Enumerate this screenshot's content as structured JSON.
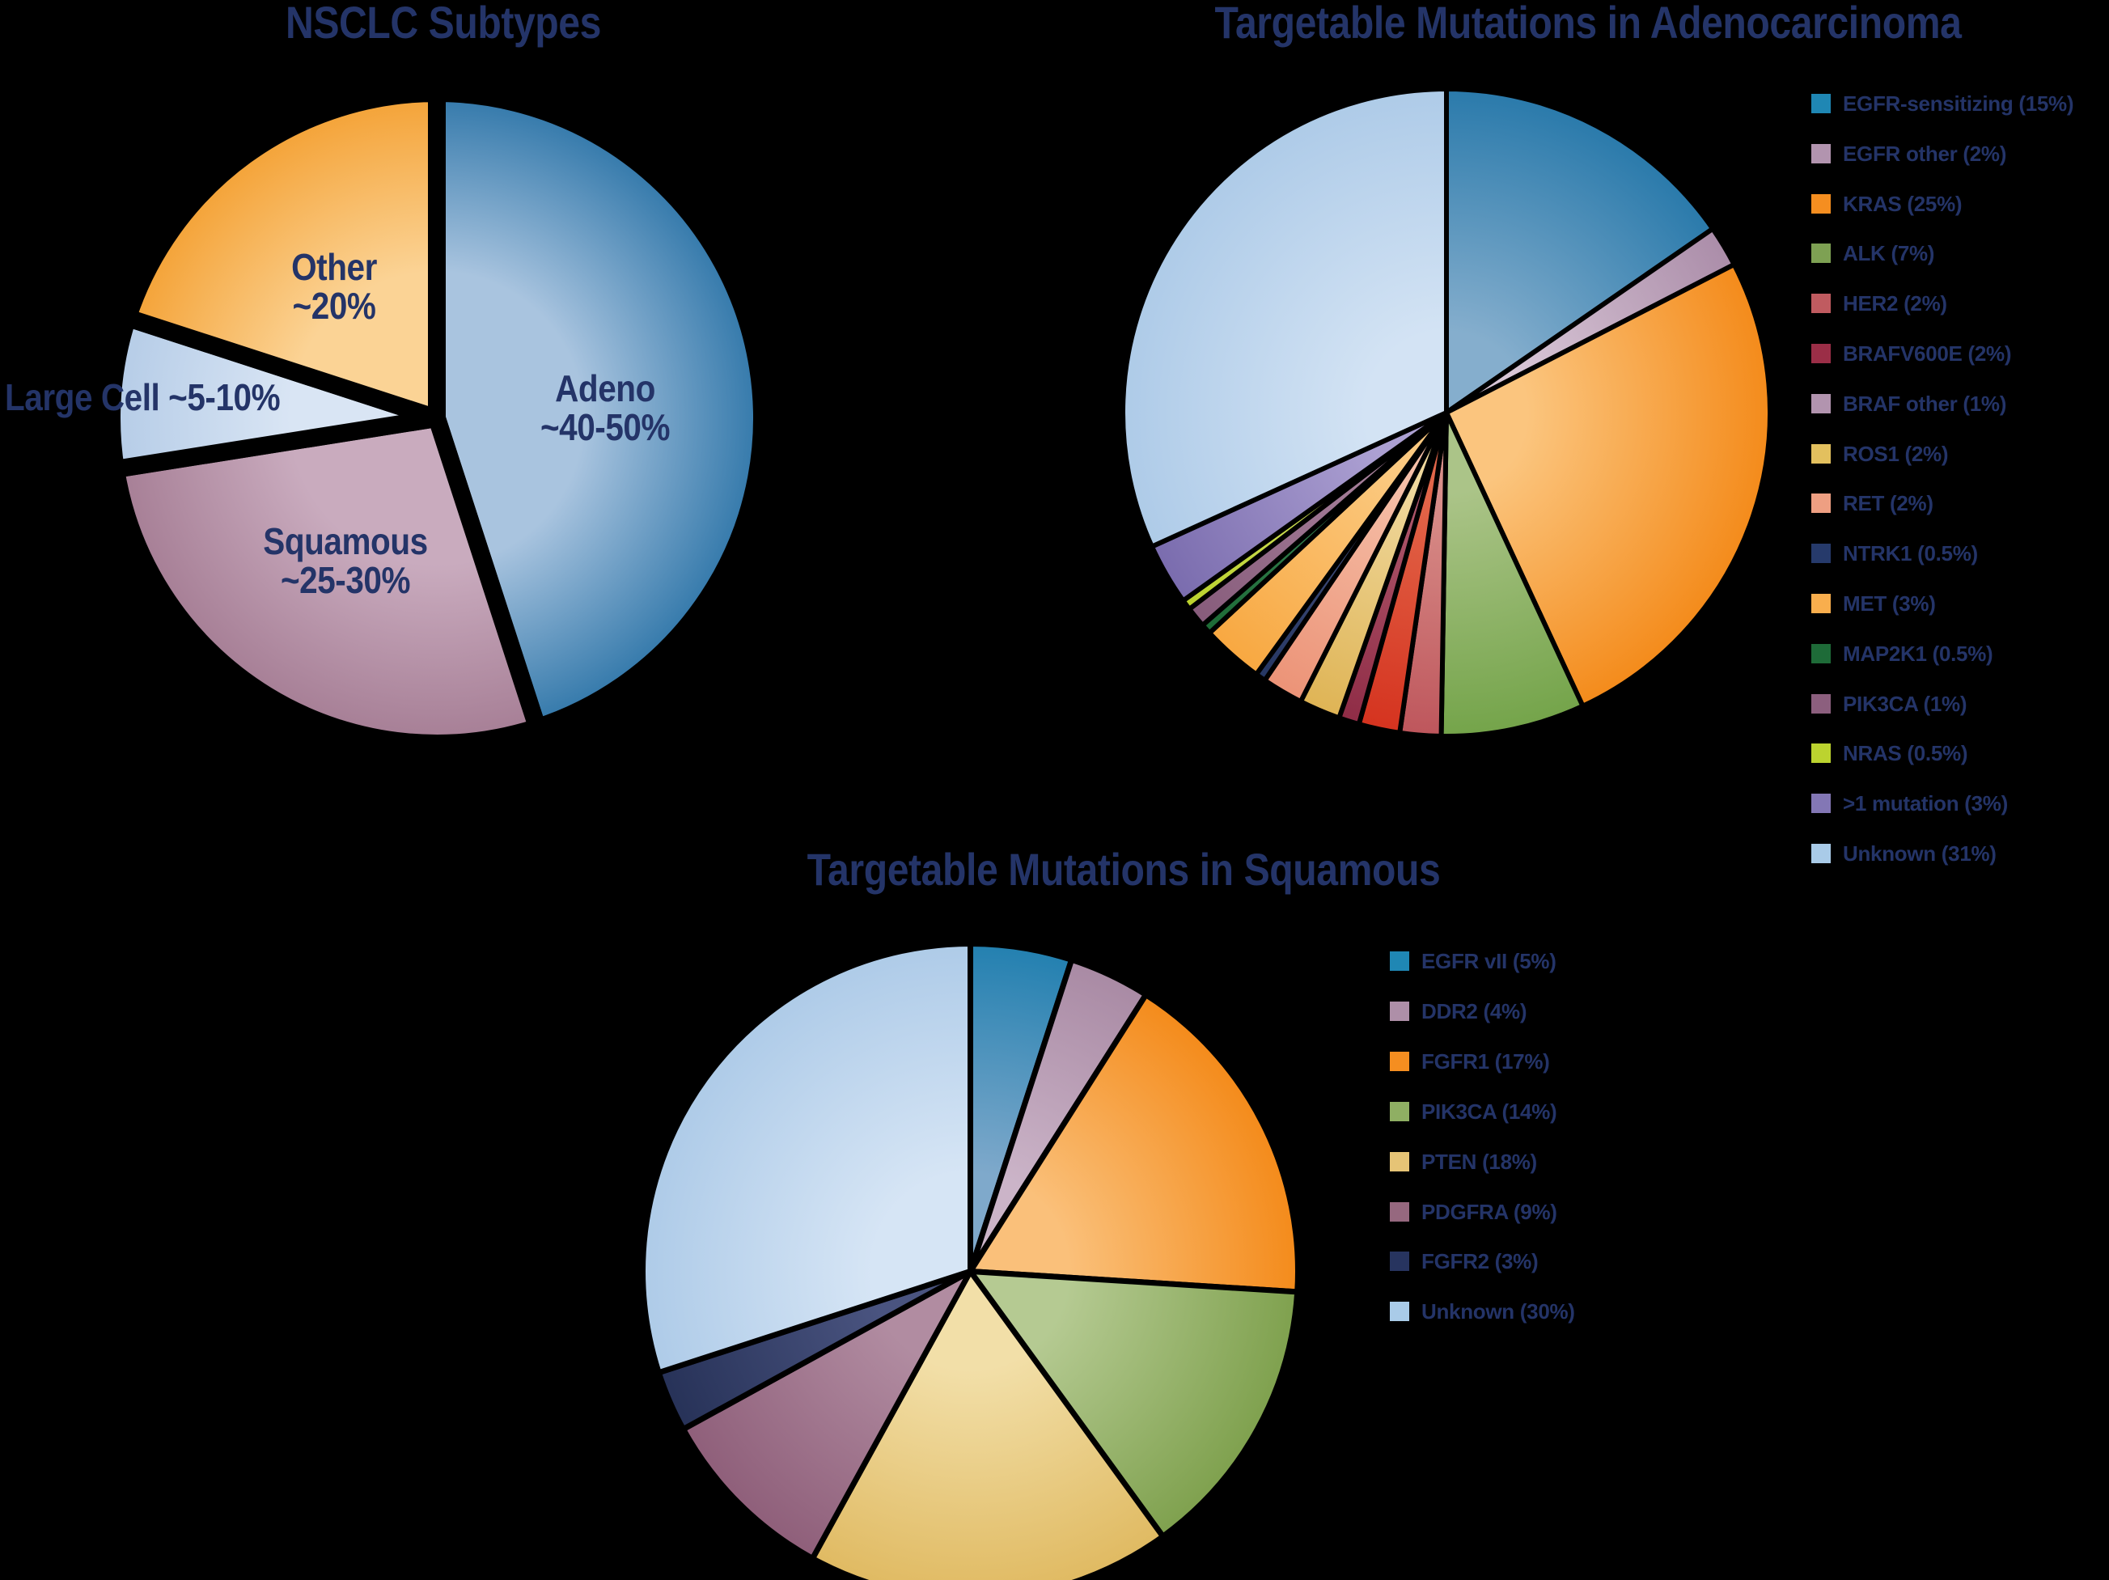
{
  "page": {
    "background_color": "#000000",
    "text_color": "#243468"
  },
  "chart_data": [
    {
      "type": "pie",
      "title": "NSCLC Subtypes",
      "legend_position": "none",
      "slices": [
        {
          "name": "Adeno",
          "display_label": "Adeno ~40-50%",
          "label_lines": [
            "Adeno",
            "~40-50%"
          ],
          "value": 45,
          "value_text": "~40-50%",
          "color_center": "#A9C4DF",
          "color_edge": "#3278AA"
        },
        {
          "name": "Squamous",
          "display_label": "Squamous ~25-30%",
          "label_lines": [
            "Squamous",
            "~25-30%"
          ],
          "value": 27.5,
          "value_text": "~25-30%",
          "color_center": "#C9ABBE",
          "color_edge": "#A67E95"
        },
        {
          "name": "Large Cell",
          "display_label": "Large Cell ~5-10%",
          "label_lines": [
            "Large Cell ~5-10%"
          ],
          "value": 7.5,
          "value_text": "~5-10%",
          "color_center": "#D9E5F4",
          "color_edge": "#B5CCE7"
        },
        {
          "name": "Other",
          "display_label": "Other ~20%",
          "label_lines": [
            "Other",
            "~20%"
          ],
          "value": 20,
          "value_text": "~20%",
          "color_center": "#FBD395",
          "color_edge": "#F4A236"
        }
      ]
    },
    {
      "type": "pie",
      "title": "Targetable Mutations in Adenocarcinoma",
      "legend_position": "right",
      "slices": [
        {
          "name": "EGFR-sensitizing",
          "legend_label": "EGFR-sensitizing (15%)",
          "value": 15,
          "legend_color": "#1F87B4",
          "color_center": "#85AECD",
          "color_edge": "#2A7AAB"
        },
        {
          "name": "EGFR other",
          "legend_label": "EGFR other (2%)",
          "value": 2,
          "legend_color": "#B294AF",
          "color_center": "#D8C6D6",
          "color_edge": "#AB8DA9"
        },
        {
          "name": "KRAS",
          "legend_label": "KRAS (25%)",
          "value": 25,
          "legend_color": "#F58E20",
          "color_center": "#FBC57E",
          "color_edge": "#F48B1B"
        },
        {
          "name": "ALK",
          "legend_label": "ALK (7%)",
          "value": 7,
          "legend_color": "#7EA153",
          "color_center": "#ABC488",
          "color_edge": "#74A44A"
        },
        {
          "name": "HER2",
          "legend_label": "HER2 (2%)",
          "value": 2,
          "legend_color": "#C05B60",
          "color_center": "#D98F8A",
          "color_edge": "#BE565C"
        },
        {
          "name": "BRAFV600E",
          "legend_label": "BRAFV600E (2%)",
          "value": 2,
          "legend_color": "#9B2E47",
          "color_center": "#E2664A",
          "color_edge": "#D5331F"
        },
        {
          "name": "BRAF other",
          "legend_label": "BRAF other (1%)",
          "value": 1,
          "legend_color": "#B294AF",
          "color_center": "#B05A6E",
          "color_edge": "#8F2C46"
        },
        {
          "name": "ROS1",
          "legend_label": "ROS1 (2%)",
          "value": 2,
          "legend_color": "#E3C05E",
          "color_center": "#EFD89D",
          "color_edge": "#DFB455"
        },
        {
          "name": "RET",
          "legend_label": "RET (2%)",
          "value": 2,
          "legend_color": "#EE9F82",
          "color_center": "#F5BFA8",
          "color_edge": "#EC9377"
        },
        {
          "name": "NTRK1",
          "legend_label": "NTRK1 (0.5%)",
          "value": 0.5,
          "legend_color": "#263A6B",
          "color_center": "#4A5580",
          "color_edge": "#263763"
        },
        {
          "name": "MET",
          "legend_label": "MET (3%)",
          "value": 3,
          "legend_color": "#F9AE4D",
          "color_center": "#FBC980",
          "color_edge": "#F8A841"
        },
        {
          "name": "MAP2K1",
          "legend_label": "MAP2K1 (0.5%)",
          "value": 0.5,
          "legend_color": "#1E6B38",
          "color_center": "#3F845A",
          "color_edge": "#1D6B36"
        },
        {
          "name": "PIK3CA",
          "legend_label": "PIK3CA (1%)",
          "value": 1,
          "legend_color": "#8C5F7E",
          "color_center": "#A8819C",
          "color_edge": "#875C7B"
        },
        {
          "name": "NRAS",
          "legend_label": "NRAS (0.5%)",
          "value": 0.5,
          "legend_color": "#BCD32F",
          "color_center": "#D2E06A",
          "color_edge": "#BBD22D"
        },
        {
          "name": ">1 mutation",
          "legend_label": ">1 mutation (3%)",
          "value": 3,
          "legend_color": "#8377B5",
          "color_center": "#ACA0D2",
          "color_edge": "#7A6CAE"
        },
        {
          "name": "Unknown",
          "legend_label": "Unknown (31%)",
          "value": 31,
          "legend_color": "#A9CBE8",
          "color_center": "#D3E3F4",
          "color_edge": "#AECBE8"
        }
      ]
    },
    {
      "type": "pie",
      "title": "Targetable Mutations in Squamous",
      "legend_position": "right",
      "slices": [
        {
          "name": "EGFR vII",
          "legend_label": "EGFR vII (5%)",
          "value": 5,
          "legend_color": "#1F87B4",
          "color_center": "#7FA9CB",
          "color_edge": "#2380B0"
        },
        {
          "name": "DDR2",
          "legend_label": "DDR2 (4%)",
          "value": 4,
          "legend_color": "#AE8FA8",
          "color_center": "#CBB4C8",
          "color_edge": "#A98AA4"
        },
        {
          "name": "FGFR1",
          "legend_label": "FGFR1 (17%)",
          "value": 17,
          "legend_color": "#F58E20",
          "color_center": "#FAC07A",
          "color_edge": "#F48B1B"
        },
        {
          "name": "PIK3CA",
          "legend_label": "PIK3CA (14%)",
          "value": 14,
          "legend_color": "#8FAF63",
          "color_center": "#B5CA92",
          "color_edge": "#7FA14E"
        },
        {
          "name": "PTEN",
          "legend_label": "PTEN (18%)",
          "value": 18,
          "legend_color": "#E6C476",
          "color_center": "#F2DFA8",
          "color_edge": "#E0BA62"
        },
        {
          "name": "PDGFRA",
          "legend_label": "PDGFRA (9%)",
          "value": 9,
          "legend_color": "#96687F",
          "color_center": "#B18CA1",
          "color_edge": "#8F5F7A"
        },
        {
          "name": "FGFR2",
          "legend_label": "FGFR2 (3%)",
          "value": 3,
          "legend_color": "#27345F",
          "color_center": "#4A5480",
          "color_edge": "#273258"
        },
        {
          "name": "Unknown",
          "legend_label": "Unknown (30%)",
          "value": 30,
          "legend_color": "#A9CBE8",
          "color_center": "#D6E5F5",
          "color_edge": "#AECBE8"
        }
      ]
    }
  ]
}
